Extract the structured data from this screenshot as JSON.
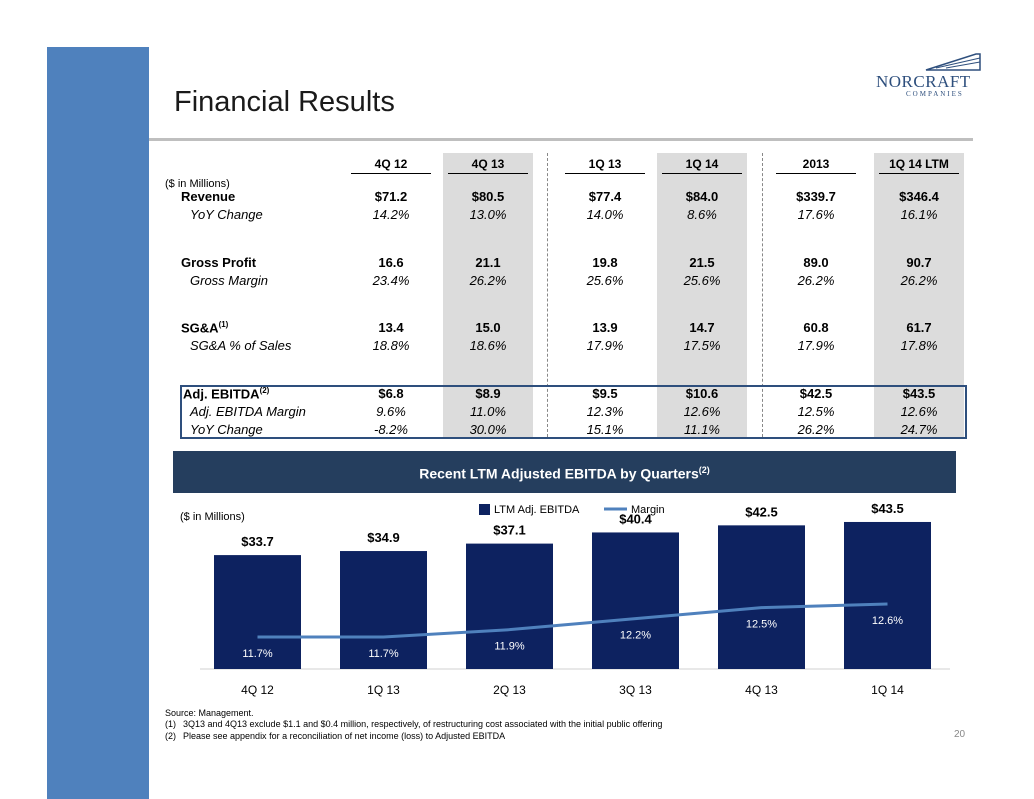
{
  "page": {
    "title": "Financial Results",
    "page_number": "20"
  },
  "logo": {
    "name": "NORCRAFT",
    "sub": "COMPANIES"
  },
  "table": {
    "units": "($ in Millions)",
    "columns": [
      "4Q 12",
      "4Q 13",
      "1Q 13",
      "1Q 14",
      "2013",
      "1Q 14 LTM"
    ],
    "rows": [
      {
        "label": "Revenue",
        "sup": "",
        "values": [
          "$71.2",
          "$80.5",
          "$77.4",
          "$84.0",
          "$339.7",
          "$346.4"
        ]
      },
      {
        "label": "YoY Change",
        "sup": "",
        "values": [
          "14.2%",
          "13.0%",
          "14.0%",
          "8.6%",
          "17.6%",
          "16.1%"
        ]
      },
      {
        "label": "Gross Profit",
        "sup": "",
        "values": [
          "16.6",
          "21.1",
          "19.8",
          "21.5",
          "89.0",
          "90.7"
        ]
      },
      {
        "label": "Gross Margin",
        "sup": "",
        "values": [
          "23.4%",
          "26.2%",
          "25.6%",
          "25.6%",
          "26.2%",
          "26.2%"
        ]
      },
      {
        "label": "SG&A",
        "sup": "(1)",
        "values": [
          "13.4",
          "15.0",
          "13.9",
          "14.7",
          "60.8",
          "61.7"
        ]
      },
      {
        "label": "SG&A % of Sales",
        "sup": "",
        "values": [
          "18.8%",
          "18.6%",
          "17.9%",
          "17.5%",
          "17.9%",
          "17.8%"
        ]
      },
      {
        "label": "Adj. EBITDA",
        "sup": "(2)",
        "values": [
          "$6.8",
          "$8.9",
          "$9.5",
          "$10.6",
          "$42.5",
          "$43.5"
        ]
      },
      {
        "label": "Adj. EBITDA Margin",
        "sup": "",
        "values": [
          "9.6%",
          "11.0%",
          "12.3%",
          "12.6%",
          "12.5%",
          "12.6%"
        ]
      },
      {
        "label": "YoY Change",
        "sup": "",
        "values": [
          "-8.2%",
          "30.0%",
          "15.1%",
          "11.1%",
          "26.2%",
          "24.7%"
        ]
      }
    ]
  },
  "banner": {
    "title": "Recent LTM Adjusted EBITDA by Quarters",
    "sup": "(2)"
  },
  "chart_data": {
    "type": "bar",
    "units": "($ in Millions)",
    "categories": [
      "4Q 12",
      "1Q 13",
      "2Q 13",
      "3Q 13",
      "4Q 13",
      "1Q 14"
    ],
    "series": [
      {
        "name": "LTM Adj. EBITDA",
        "type": "bar",
        "color": "#0d2260",
        "values": [
          33.7,
          34.9,
          37.1,
          40.4,
          42.5,
          43.5
        ],
        "labels": [
          "$33.7",
          "$34.9",
          "$37.1",
          "$40.4",
          "$42.5",
          "$43.5"
        ]
      },
      {
        "name": "Margin",
        "type": "line",
        "color": "#4f81bd",
        "values": [
          11.7,
          11.7,
          11.9,
          12.2,
          12.5,
          12.6
        ],
        "labels": [
          "11.7%",
          "11.7%",
          "11.9%",
          "12.2%",
          "12.5%",
          "12.6%"
        ]
      }
    ],
    "legend": "top-center",
    "grid": false
  },
  "footnotes": {
    "source": "Source: Management.",
    "notes": [
      {
        "num": "(1)",
        "text": "3Q13 and 4Q13 exclude $1.1 and $0.4 million, respectively, of restructuring cost associated with the initial public offering"
      },
      {
        "num": "(2)",
        "text": "Please see appendix for a reconciliation of net income (loss) to Adjusted EBITDA"
      }
    ]
  }
}
